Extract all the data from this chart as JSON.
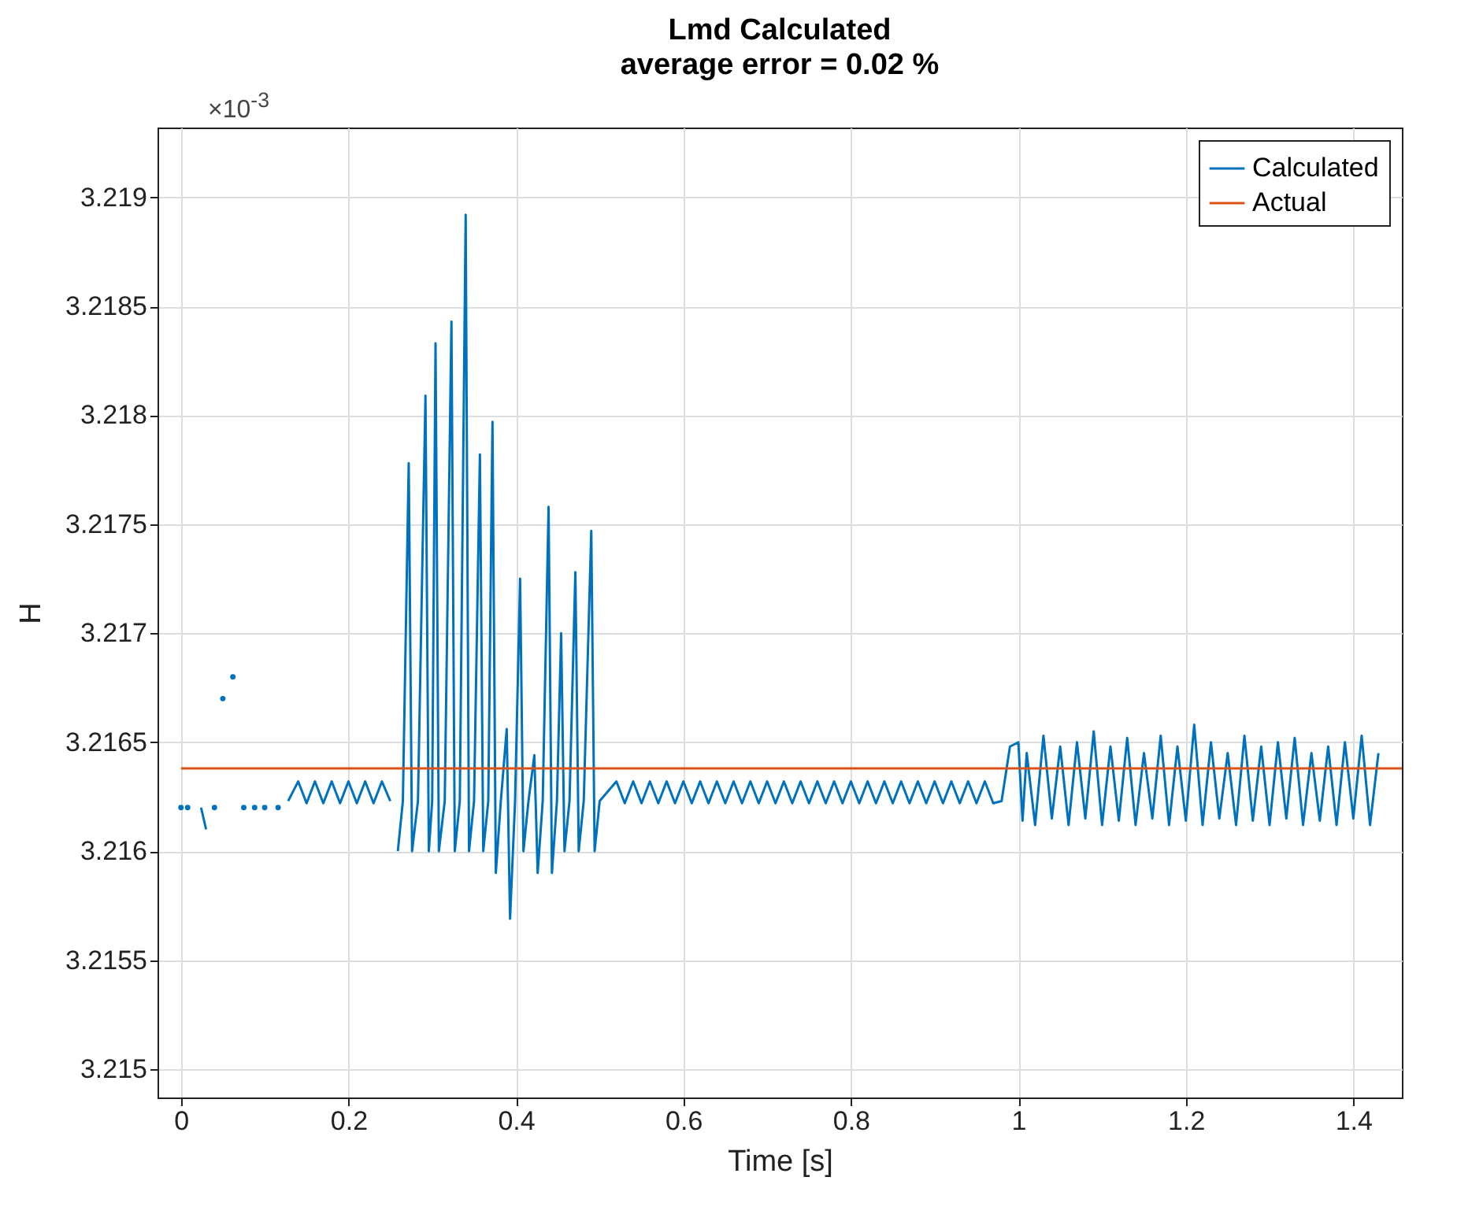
{
  "chart_data": {
    "type": "line",
    "title": "Lmd Calculated",
    "subtitle": "average error = 0.02 %",
    "xlabel": "Time [s]",
    "ylabel": "H",
    "annotations": [
      "×10$^{-3}$"
    ],
    "xlim": [
      -0.028,
      1.458
    ],
    "ylim": [
      3.21487,
      3.21932
    ],
    "xticks": [
      0,
      0.2,
      0.4,
      0.6,
      0.8,
      1,
      1.2,
      1.4
    ],
    "yticks": [
      3.215,
      3.2155,
      3.216,
      3.2165,
      3.217,
      3.2175,
      3.218,
      3.2185,
      3.219
    ],
    "grid": true,
    "legend": "top right",
    "series": [
      {
        "name": "Calculated",
        "color": "#0072bd",
        "x": [
          0,
          0.004,
          0.008,
          0.012,
          0.016,
          0.02,
          0.024,
          0.03,
          0.036,
          0.04,
          0.046,
          0.05,
          0.054,
          0.058,
          0.062,
          0.066,
          0.07,
          0.075,
          0.08,
          0.084,
          0.088,
          0.092,
          0.096,
          0.1,
          0.104,
          0.108,
          0.112,
          0.116,
          0.12,
          0.124,
          0.128,
          0.14,
          0.15,
          0.16,
          0.17,
          0.18,
          0.19,
          0.2,
          0.21,
          0.22,
          0.23,
          0.24,
          0.25,
          0.255,
          0.259,
          0.265,
          0.272,
          0.276,
          0.283,
          0.292,
          0.296,
          0.3,
          0.304,
          0.308,
          0.315,
          0.323,
          0.327,
          0.333,
          0.34,
          0.344,
          0.35,
          0.357,
          0.361,
          0.367,
          0.372,
          0.376,
          0.382,
          0.389,
          0.393,
          0.399,
          0.405,
          0.409,
          0.415,
          0.422,
          0.426,
          0.432,
          0.439,
          0.443,
          0.449,
          0.454,
          0.458,
          0.464,
          0.471,
          0.475,
          0.481,
          0.49,
          0.494,
          0.5,
          0.52,
          0.53,
          0.54,
          0.55,
          0.56,
          0.57,
          0.58,
          0.59,
          0.6,
          0.61,
          0.62,
          0.63,
          0.64,
          0.65,
          0.66,
          0.67,
          0.68,
          0.69,
          0.7,
          0.71,
          0.72,
          0.73,
          0.74,
          0.75,
          0.76,
          0.77,
          0.78,
          0.79,
          0.8,
          0.81,
          0.82,
          0.83,
          0.84,
          0.85,
          0.86,
          0.87,
          0.88,
          0.89,
          0.9,
          0.91,
          0.92,
          0.93,
          0.94,
          0.95,
          0.96,
          0.97,
          0.98,
          0.99,
          1,
          1.005,
          1.01,
          1.02,
          1.03,
          1.04,
          1.05,
          1.06,
          1.07,
          1.08,
          1.09,
          1.1,
          1.11,
          1.12,
          1.13,
          1.14,
          1.15,
          1.16,
          1.17,
          1.18,
          1.19,
          1.2,
          1.21,
          1.22,
          1.23,
          1.24,
          1.25,
          1.26,
          1.27,
          1.28,
          1.29,
          1.3,
          1.31,
          1.32,
          1.33,
          1.34,
          1.35,
          1.36,
          1.37,
          1.38,
          1.39,
          1.4,
          1.41,
          1.42,
          1.43
        ],
        "values": [
          3.2162,
          null,
          3.2162,
          null,
          null,
          null,
          3.2162,
          3.2161,
          null,
          3.2162,
          null,
          3.2167,
          null,
          null,
          3.2168,
          null,
          null,
          3.2162,
          null,
          null,
          3.2162,
          null,
          null,
          3.2162,
          null,
          null,
          null,
          3.2162,
          null,
          null,
          3.21623,
          3.21632,
          3.21622,
          3.21632,
          3.21622,
          3.21632,
          3.21622,
          3.21632,
          3.21622,
          3.21632,
          3.21622,
          3.21632,
          3.21623,
          null,
          3.216,
          3.21623,
          3.21778,
          3.216,
          3.21623,
          3.21809,
          3.216,
          3.21623,
          3.21833,
          3.216,
          3.21623,
          3.21843,
          3.216,
          3.21623,
          3.21892,
          3.216,
          3.21623,
          3.21782,
          3.216,
          3.21623,
          3.21797,
          3.2159,
          3.21623,
          3.21656,
          3.21569,
          3.21623,
          3.21725,
          3.216,
          3.21623,
          3.21644,
          3.2159,
          3.21623,
          3.21758,
          3.2159,
          3.21623,
          3.217,
          3.216,
          3.21623,
          3.21728,
          3.216,
          3.21623,
          3.21747,
          3.216,
          3.21623,
          3.21632,
          3.21622,
          3.21632,
          3.21622,
          3.21632,
          3.21622,
          3.21632,
          3.21622,
          3.21632,
          3.21622,
          3.21632,
          3.21622,
          3.21632,
          3.21622,
          3.21632,
          3.21622,
          3.21632,
          3.21622,
          3.21632,
          3.21622,
          3.21632,
          3.21622,
          3.21632,
          3.21622,
          3.21632,
          3.21622,
          3.21632,
          3.21622,
          3.21632,
          3.21622,
          3.21632,
          3.21622,
          3.21632,
          3.21622,
          3.21632,
          3.21622,
          3.21632,
          3.21622,
          3.21632,
          3.21622,
          3.21632,
          3.21622,
          3.21632,
          3.21622,
          3.21632,
          3.21622,
          3.21623,
          3.21648,
          3.2165,
          3.21614,
          3.21645,
          3.21612,
          3.21653,
          3.21615,
          3.21648,
          3.21612,
          3.2165,
          3.21615,
          3.21655,
          3.21612,
          3.21648,
          3.21614,
          3.21652,
          3.21612,
          3.21645,
          3.21615,
          3.21653,
          3.21612,
          3.21648,
          3.21614,
          3.21658,
          3.21612,
          3.2165,
          3.21615,
          3.21645,
          3.21612,
          3.21653,
          3.21614,
          3.21648,
          3.21612,
          3.2165,
          3.21615,
          3.21652,
          3.21612,
          3.21645,
          3.21614,
          3.21648,
          3.21612,
          3.2165,
          3.21615,
          3.21653,
          3.21612,
          3.21645
        ]
      },
      {
        "name": "Actual",
        "color": "#d95319",
        "x": [
          0,
          1.458
        ],
        "values": [
          3.21638,
          3.21638
        ]
      }
    ]
  }
}
